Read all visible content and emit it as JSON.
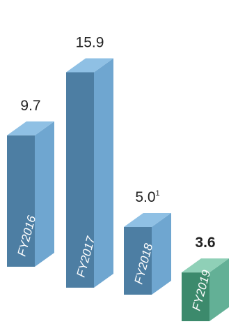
{
  "chart_data": {
    "type": "bar",
    "categories": [
      "FY2016",
      "FY2017",
      "FY2018",
      "FY2019"
    ],
    "values": [
      9.7,
      15.9,
      5.0,
      3.6
    ],
    "value_labels": [
      "9.7",
      "15.9",
      "5.0",
      "3.6"
    ],
    "value_label_superscripts": [
      "",
      "",
      "1",
      ""
    ],
    "highlight_index": 3,
    "colors": {
      "bar_front": "#4d7ea3",
      "bar_side": "#6fa6d0",
      "bar_top": "#8fc0e4",
      "highlight_front": "#3c8a6c",
      "highlight_side": "#63b096",
      "highlight_top": "#8fd0b7"
    }
  }
}
